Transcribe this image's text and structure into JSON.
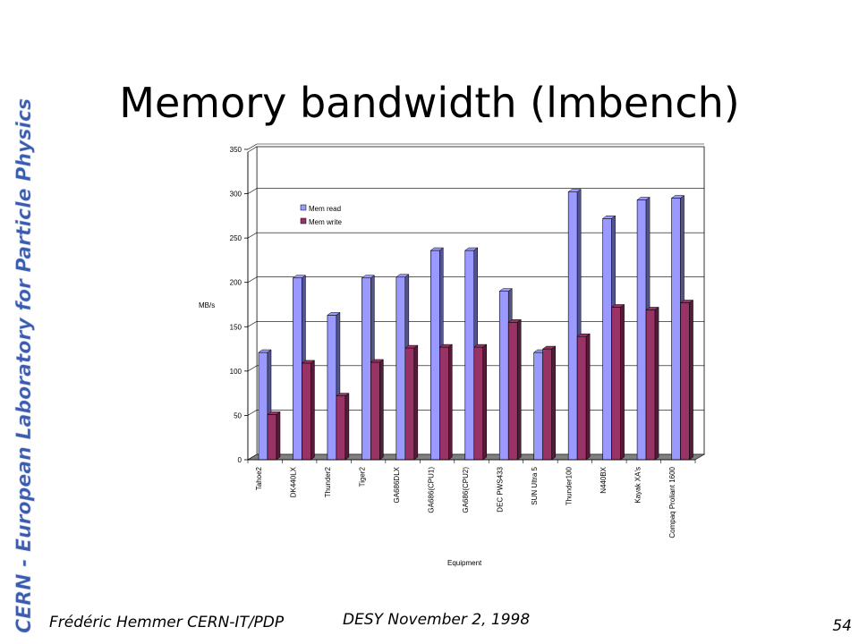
{
  "slide": {
    "title": "Memory bandwidth (lmbench)",
    "side_banner": "CERN - European Laboratory for Particle Physics",
    "footer_author": "Frédéric Hemmer CERN-IT/PDP",
    "footer_event": "DESY November 2, 1998",
    "page_number": "54"
  },
  "colors": {
    "mem_read": "#9999ff",
    "mem_write": "#993366",
    "banner_gradient_top": "#8aa0d8",
    "banner_gradient_bottom": "#1f3a8a"
  },
  "chart_data": {
    "type": "bar",
    "title": "",
    "xlabel": "Equipment",
    "ylabel": "MB/s",
    "ylim": [
      0,
      350
    ],
    "yticks": [
      0,
      50,
      100,
      150,
      200,
      250,
      300,
      350
    ],
    "grid": true,
    "legend_position": "top-left inside plot",
    "categories": [
      "Tahoe2",
      "DK440LX",
      "Thunder2",
      "Tiger2",
      "GA686DLX",
      "GA686(CPU1)",
      "GA686(CPU2)",
      "DEC PWS433",
      "SUN Ultra 5",
      "Thunder100",
      "N440BX",
      "Kayak XA's",
      "Compaq Proliant 1600"
    ],
    "series": [
      {
        "name": "Mem read",
        "values": [
          121,
          205,
          163,
          205,
          206,
          236,
          236,
          190,
          121,
          302,
          272,
          293,
          295
        ]
      },
      {
        "name": "Mem write",
        "values": [
          51,
          109,
          72,
          110,
          126,
          127,
          127,
          155,
          125,
          139,
          172,
          169,
          177
        ]
      }
    ]
  }
}
